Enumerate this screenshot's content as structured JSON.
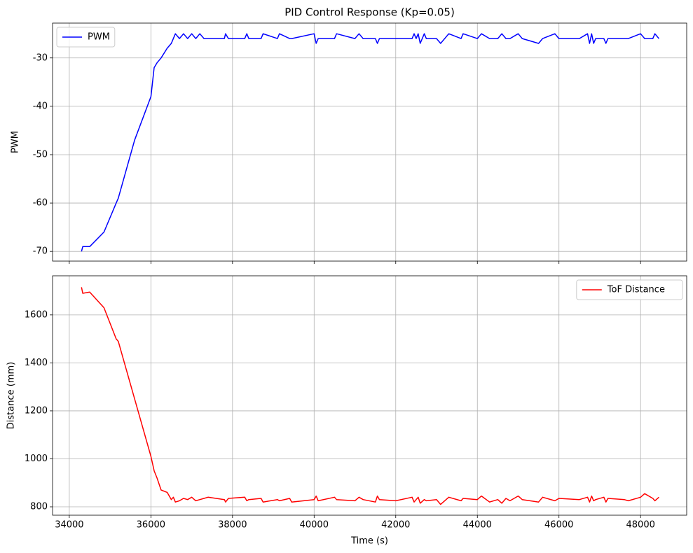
{
  "chart_data": [
    {
      "type": "line",
      "title": "PID Control Response (Kp=0.05)",
      "ylabel": "PWM",
      "legend": "upper left",
      "grid": true,
      "x": [
        34300,
        34330,
        34500,
        34850,
        35150,
        35200,
        35600,
        36000,
        36080,
        36150,
        36250,
        36400,
        36500,
        36550,
        36600,
        36700,
        36800,
        36900,
        37000,
        37100,
        37200,
        37300,
        37400,
        37800,
        37830,
        37900,
        38300,
        38350,
        38400,
        38700,
        38750,
        39100,
        39150,
        39400,
        39450,
        40000,
        40050,
        40100,
        40500,
        40550,
        41000,
        41100,
        41200,
        41500,
        41550,
        41600,
        42000,
        42400,
        42450,
        42500,
        42550,
        42600,
        42700,
        42750,
        43000,
        43100,
        43300,
        43600,
        43650,
        44000,
        44100,
        44300,
        44500,
        44600,
        44700,
        44800,
        45000,
        45100,
        45500,
        45600,
        45900,
        46000,
        46500,
        46700,
        46750,
        46800,
        46850,
        46900,
        47100,
        47150,
        47200,
        47600,
        47700,
        48000,
        48100,
        48300,
        48350,
        48450
      ],
      "series": [
        {
          "name": "PWM",
          "color": "#0000ff",
          "values": [
            -70,
            -69,
            -69,
            -66,
            -60,
            -59,
            -47,
            -38,
            -32,
            -31,
            -30,
            -28,
            -27,
            -26,
            -25,
            -26,
            -25,
            -26,
            -25,
            -26,
            -25,
            -26,
            -26,
            -26,
            -25,
            -26,
            -26,
            -25,
            -26,
            -26,
            -25,
            -26,
            -25,
            -26,
            -26,
            -25,
            -27,
            -26,
            -26,
            -25,
            -26,
            -25,
            -26,
            -26,
            -27,
            -26,
            -26,
            -26,
            -25,
            -26,
            -25,
            -27,
            -25,
            -26,
            -26,
            -27,
            -25,
            -26,
            -25,
            -26,
            -25,
            -26,
            -26,
            -25,
            -26,
            -26,
            -25,
            -26,
            -27,
            -26,
            -25,
            -26,
            -26,
            -25,
            -27,
            -25,
            -27,
            -26,
            -26,
            -27,
            -26,
            -26,
            -26,
            -25,
            -26,
            -26,
            -25,
            -26
          ]
        }
      ],
      "xlim": [
        33590,
        49130
      ],
      "xticks": [
        34000,
        36000,
        38000,
        40000,
        42000,
        44000,
        46000,
        48000
      ],
      "ylim": [
        -72.0,
        -22.8
      ],
      "yticks": [
        -70,
        -60,
        -50,
        -40,
        -30
      ]
    },
    {
      "type": "line",
      "xlabel": "Time (s)",
      "ylabel": "Distance (mm)",
      "legend": "upper right",
      "grid": true,
      "x": [
        34300,
        34330,
        34500,
        34850,
        35150,
        35200,
        35600,
        36000,
        36080,
        36150,
        36250,
        36400,
        36500,
        36550,
        36600,
        36700,
        36800,
        36900,
        37000,
        37100,
        37200,
        37300,
        37400,
        37800,
        37830,
        37900,
        38300,
        38350,
        38400,
        38700,
        38750,
        39100,
        39150,
        39400,
        39450,
        40000,
        40050,
        40100,
        40500,
        40550,
        41000,
        41100,
        41200,
        41500,
        41550,
        41600,
        42000,
        42400,
        42450,
        42500,
        42550,
        42600,
        42700,
        42750,
        43000,
        43100,
        43300,
        43600,
        43650,
        44000,
        44100,
        44300,
        44500,
        44600,
        44700,
        44800,
        45000,
        45100,
        45500,
        45600,
        45900,
        46000,
        46500,
        46700,
        46750,
        46800,
        46850,
        46900,
        47100,
        47150,
        47200,
        47600,
        47700,
        48000,
        48100,
        48300,
        48350,
        48450
      ],
      "series": [
        {
          "name": "ToF Distance",
          "color": "#ff0000",
          "values": [
            1715,
            1690,
            1695,
            1630,
            1500,
            1490,
            1250,
            1010,
            950,
            920,
            870,
            860,
            830,
            840,
            820,
            825,
            835,
            830,
            840,
            825,
            830,
            835,
            840,
            830,
            820,
            835,
            840,
            825,
            830,
            835,
            820,
            830,
            825,
            835,
            820,
            830,
            845,
            825,
            840,
            830,
            825,
            840,
            830,
            820,
            845,
            830,
            825,
            840,
            820,
            830,
            840,
            815,
            830,
            825,
            830,
            810,
            840,
            825,
            835,
            830,
            845,
            820,
            830,
            815,
            835,
            825,
            845,
            830,
            820,
            840,
            825,
            835,
            830,
            840,
            820,
            845,
            825,
            830,
            840,
            820,
            835,
            830,
            825,
            840,
            855,
            835,
            825,
            840
          ]
        }
      ],
      "xlim": [
        33590,
        49130
      ],
      "xticks": [
        34000,
        36000,
        38000,
        40000,
        42000,
        44000,
        46000,
        48000
      ],
      "ylim": [
        765,
        1763
      ],
      "yticks": [
        800,
        1000,
        1200,
        1400,
        1600
      ]
    }
  ]
}
